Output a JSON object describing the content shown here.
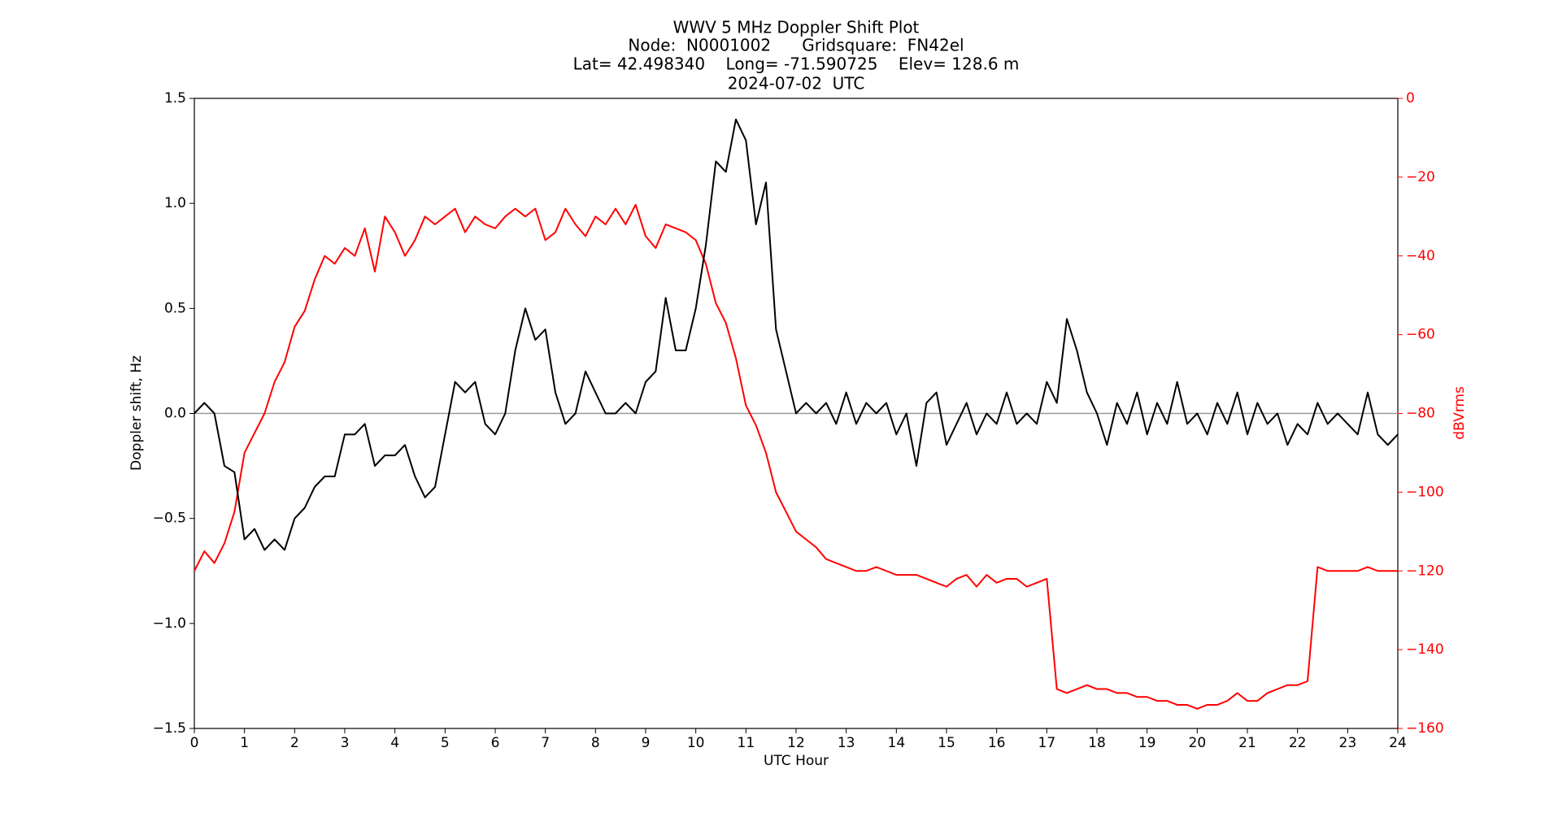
{
  "chart_data": {
    "type": "line",
    "title_lines": [
      "WWV 5 MHz Doppler Shift Plot",
      "Node:  N0001002      Gridsquare:  FN42el",
      "Lat= 42.498340    Long= -71.590725    Elev= 128.6 m",
      "2024-07-02  UTC"
    ],
    "xlabel": "UTC Hour",
    "ylabel": "Doppler shift, Hz",
    "y2label": "dBVrms",
    "xlim": [
      0,
      24
    ],
    "xticks": [
      0,
      1,
      2,
      3,
      4,
      5,
      6,
      7,
      8,
      9,
      10,
      11,
      12,
      13,
      14,
      15,
      16,
      17,
      18,
      19,
      20,
      21,
      22,
      23,
      24
    ],
    "ylim": [
      -1.5,
      1.5
    ],
    "yticks": [
      {
        "value": -1.5,
        "label": "−1.5"
      },
      {
        "value": -1.0,
        "label": "−1.0"
      },
      {
        "value": -0.5,
        "label": "−0.5"
      },
      {
        "value": 0,
        "label": "0.0"
      },
      {
        "value": 0.5,
        "label": "0.5"
      },
      {
        "value": 1.0,
        "label": "1.0"
      },
      {
        "value": 1.5,
        "label": "1.5"
      }
    ],
    "y2lim": [
      -160,
      0
    ],
    "y2ticks": [
      {
        "value": -160,
        "label": "−160"
      },
      {
        "value": -140,
        "label": "−140"
      },
      {
        "value": -120,
        "label": "−120"
      },
      {
        "value": -100,
        "label": "−100"
      },
      {
        "value": -80,
        "label": "−80"
      },
      {
        "value": -60,
        "label": "−60"
      },
      {
        "value": -40,
        "label": "−40"
      },
      {
        "value": -20,
        "label": "−20"
      },
      0
    ],
    "y2color": "#ff0000",
    "hline": 0,
    "x": [
      0,
      0.2,
      0.4,
      0.6,
      0.8,
      1,
      1.2,
      1.4,
      1.6,
      1.8,
      2,
      2.2,
      2.4,
      2.6,
      2.8,
      3,
      3.2,
      3.4,
      3.6,
      3.8,
      4,
      4.2,
      4.4,
      4.6,
      4.8,
      5,
      5.2,
      5.4,
      5.6,
      5.8,
      6,
      6.2,
      6.4,
      6.6,
      6.8,
      7,
      7.2,
      7.4,
      7.6,
      7.8,
      8,
      8.2,
      8.4,
      8.6,
      8.8,
      9,
      9.2,
      9.4,
      9.6,
      9.8,
      10,
      10.2,
      10.4,
      10.6,
      10.8,
      11,
      11.2,
      11.4,
      11.6,
      11.8,
      12,
      12.2,
      12.4,
      12.6,
      12.8,
      13,
      13.2,
      13.4,
      13.6,
      13.8,
      14,
      14.2,
      14.4,
      14.6,
      14.8,
      15,
      15.2,
      15.4,
      15.6,
      15.8,
      16,
      16.2,
      16.4,
      16.6,
      16.8,
      17,
      17.2,
      17.4,
      17.6,
      17.8,
      18,
      18.2,
      18.4,
      18.6,
      18.8,
      19,
      19.2,
      19.4,
      19.6,
      19.8,
      20,
      20.2,
      20.4,
      20.6,
      20.8,
      21,
      21.2,
      21.4,
      21.6,
      21.8,
      22,
      22.2,
      22.4,
      22.6,
      22.8,
      23,
      23.2,
      23.4,
      23.6,
      23.8,
      24
    ],
    "series": [
      {
        "name": "Doppler shift",
        "color": "#000000",
        "axis": "y",
        "values": [
          0,
          0.05,
          0,
          -0.25,
          -0.28,
          -0.6,
          -0.55,
          -0.65,
          -0.6,
          -0.65,
          -0.5,
          -0.45,
          -0.35,
          -0.3,
          -0.3,
          -0.1,
          -0.1,
          -0.05,
          -0.25,
          -0.2,
          -0.2,
          -0.15,
          -0.3,
          -0.4,
          -0.35,
          -0.1,
          0.15,
          0.1,
          0.15,
          -0.05,
          -0.1,
          0,
          0.3,
          0.5,
          0.35,
          0.4,
          0.1,
          -0.05,
          0,
          0.2,
          0.1,
          0,
          0,
          0.05,
          0,
          0.15,
          0.2,
          0.55,
          0.3,
          0.3,
          0.5,
          0.8,
          1.2,
          1.15,
          1.4,
          1.3,
          0.9,
          1.1,
          0.4,
          0.2,
          0,
          0.05,
          0,
          0.05,
          -0.05,
          0.1,
          -0.05,
          0.05,
          0,
          0.05,
          -0.1,
          0,
          -0.25,
          0.05,
          0.1,
          -0.15,
          -0.05,
          0.05,
          -0.1,
          0,
          -0.05,
          0.1,
          -0.05,
          0,
          -0.05,
          0.15,
          0.05,
          0.45,
          0.3,
          0.1,
          0,
          -0.15,
          0.05,
          -0.05,
          0.1,
          -0.1,
          0.05,
          -0.05,
          0.15,
          -0.05,
          0,
          -0.1,
          0.05,
          -0.05,
          0.1,
          -0.1,
          0.05,
          -0.05,
          0,
          -0.15,
          -0.05,
          -0.1,
          0.05,
          -0.05,
          0,
          -0.05,
          -0.1,
          0.1,
          -0.1,
          -0.15,
          -0.1
        ]
      },
      {
        "name": "dBVrms",
        "color": "#ff0000",
        "axis": "y2",
        "values": [
          -120,
          -115,
          -118,
          -113,
          -105,
          -90,
          -85,
          -80,
          -72,
          -67,
          -58,
          -54,
          -46,
          -40,
          -42,
          -38,
          -40,
          -33,
          -44,
          -30,
          -34,
          -40,
          -36,
          -30,
          -32,
          -30,
          -28,
          -34,
          -30,
          -32,
          -33,
          -30,
          -28,
          -30,
          -28,
          -36,
          -34,
          -28,
          -32,
          -35,
          -30,
          -32,
          -28,
          -32,
          -27,
          -35,
          -38,
          -32,
          -33,
          -34,
          -36,
          -42,
          -52,
          -57,
          -66,
          -78,
          -83,
          -90,
          -100,
          -105,
          -110,
          -112,
          -114,
          -117,
          -118,
          -119,
          -120,
          -120,
          -119,
          -120,
          -121,
          -121,
          -121,
          -122,
          -123,
          -124,
          -122,
          -121,
          -124,
          -121,
          -123,
          -122,
          -122,
          -124,
          -123,
          -122,
          -150,
          -151,
          -150,
          -149,
          -150,
          -150,
          -151,
          -151,
          -152,
          -152,
          -153,
          -153,
          -154,
          -154,
          -155,
          -154,
          -154,
          -153,
          -151,
          -153,
          -153,
          -151,
          -150,
          -149,
          -149,
          -148,
          -119,
          -120,
          -120,
          -120,
          -120,
          -119,
          -120,
          -120,
          -120
        ]
      }
    ]
  }
}
